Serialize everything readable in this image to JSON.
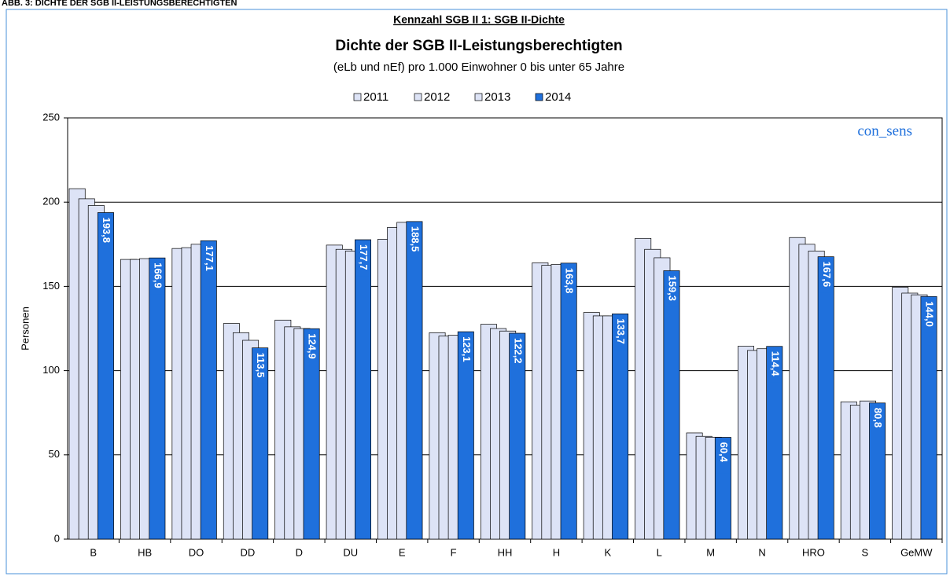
{
  "header": "ABB. 3: DICHTE DER SGB II-LEISTUNGSBERECHTIGTEN",
  "chart_data": {
    "type": "bar",
    "kicker": "Kennzahl SGB II 1: SGB II-Dichte",
    "title": "Dichte der SGB II-Leistungsberechtigten",
    "subtitle": "(eLb und nEf) pro 1.000 Einwohner 0 bis unter 65 Jahre",
    "y_label": "Personen",
    "watermark": "con_sens",
    "categories": [
      "B",
      "HB",
      "DO",
      "DD",
      "D",
      "DU",
      "E",
      "F",
      "HH",
      "H",
      "K",
      "L",
      "M",
      "N",
      "HRO",
      "S",
      "GeMW"
    ],
    "series": [
      {
        "name": "2011",
        "color": "#dde3f6",
        "values": [
          208,
          166,
          172.5,
          128,
          130,
          174.5,
          178,
          122.5,
          127.5,
          164,
          134.5,
          178.5,
          63,
          114.5,
          179,
          81.5,
          149.5
        ]
      },
      {
        "name": "2012",
        "color": "#dde3f6",
        "values": [
          202,
          166,
          173,
          122.5,
          126,
          172,
          185,
          120.5,
          125,
          162.5,
          132.5,
          172,
          61,
          112,
          175,
          79.5,
          146
        ]
      },
      {
        "name": "2013",
        "color": "#dde3f6",
        "values": [
          198,
          166.5,
          175,
          118,
          125,
          171,
          188,
          121,
          123.5,
          163,
          132.5,
          167,
          60.5,
          113,
          171,
          82,
          145
        ]
      },
      {
        "name": "2014",
        "color": "#1f70dc",
        "values": [
          193.8,
          166.9,
          177.1,
          113.5,
          124.9,
          177.7,
          188.5,
          123.1,
          122.2,
          163.8,
          133.7,
          159.3,
          60.4,
          114.4,
          167.6,
          80.8,
          144.0
        ],
        "value_labels": [
          "193,8",
          "166,9",
          "177,1",
          "113,5",
          "124,9",
          "177,7",
          "188,5",
          "123,1",
          "122,2",
          "163,8",
          "133,7",
          "159,3",
          "60,4",
          "114,4",
          "167,6",
          "80,8",
          "144,0"
        ]
      }
    ],
    "ylim": [
      0,
      250
    ],
    "yticks": [
      0,
      50,
      100,
      150,
      200,
      250
    ],
    "grid": true
  }
}
